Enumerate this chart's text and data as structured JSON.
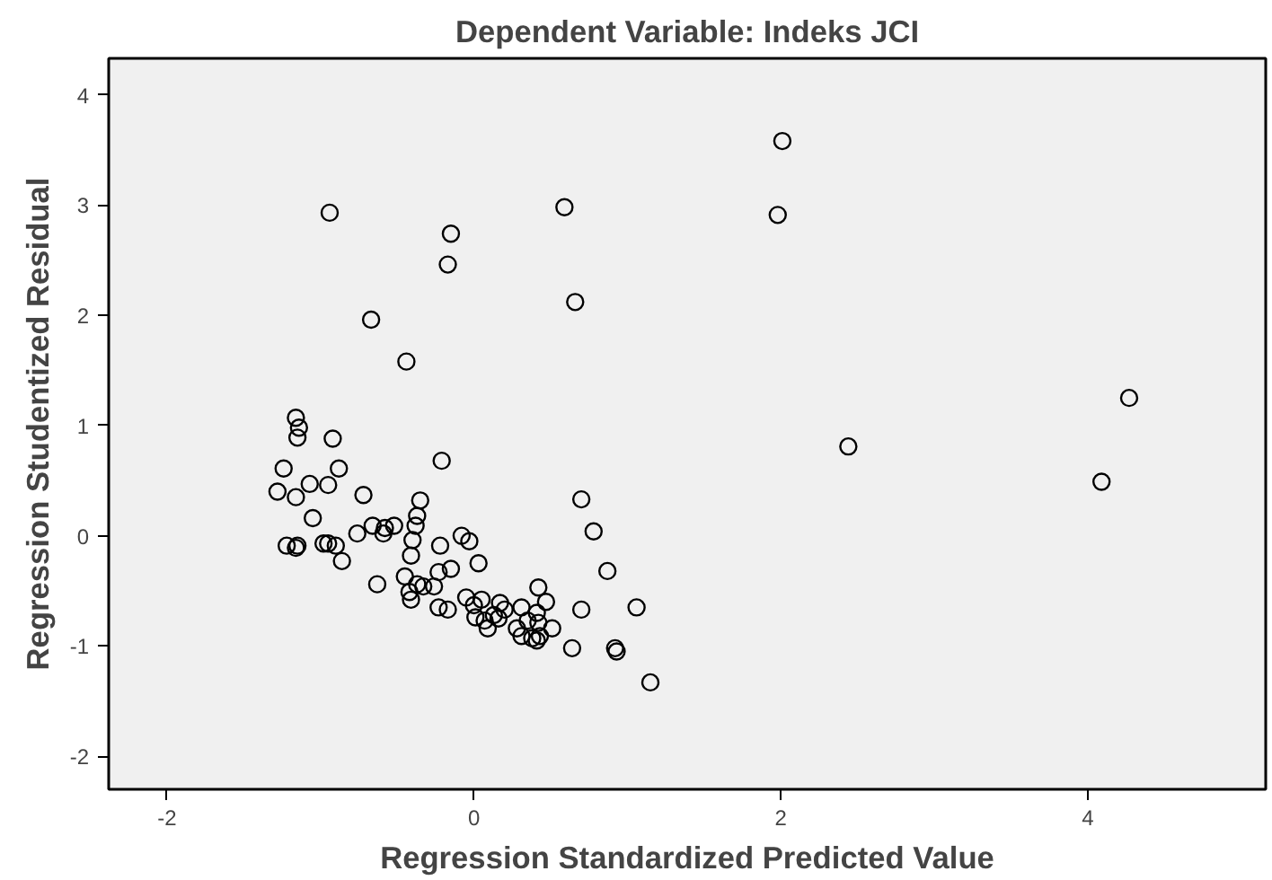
{
  "chart_data": {
    "type": "scatter",
    "title": "Dependent Variable: Indeks JCI",
    "xlabel": "Regression Standardized Predicted Value",
    "ylabel": "Regression Studentized Residual",
    "xlim": [
      -2.38,
      5.16
    ],
    "ylim": [
      -2.3,
      4.33
    ],
    "xticks": [
      -2,
      0,
      2,
      4
    ],
    "yticks": [
      -2,
      -1,
      0,
      1,
      2,
      3,
      4
    ],
    "marker": "circle",
    "series": [
      {
        "color": "#000000",
        "x": [
          -0.94,
          -0.15,
          -0.17,
          0.59,
          0.66,
          -0.67,
          -0.44,
          2.01,
          1.98,
          2.44,
          4.27,
          4.09,
          -1.16,
          -1.14,
          -1.15,
          -0.92,
          -0.88,
          -1.24,
          -1.16,
          -1.07,
          -1.28,
          -0.95,
          -1.05,
          -0.72,
          -0.66,
          -0.58,
          -0.59,
          -0.52,
          -0.76,
          -0.95,
          -1.22,
          -1.15,
          -1.16,
          -0.98,
          -0.9,
          -0.86,
          -0.63,
          -0.21,
          -0.35,
          -0.37,
          -0.38,
          -0.4,
          -0.41,
          -0.08,
          -0.03,
          0.03,
          -0.22,
          -0.23,
          -0.15,
          -0.45,
          -0.37,
          -0.42,
          -0.33,
          -0.26,
          -0.41,
          -0.23,
          -0.17,
          -0.05,
          0.0,
          0.05,
          0.01,
          0.07,
          0.13,
          0.17,
          0.2,
          0.16,
          0.09,
          0.28,
          0.31,
          0.35,
          0.42,
          0.41,
          0.38,
          0.43,
          0.31,
          0.42,
          0.47,
          0.51,
          0.41,
          0.7,
          0.78,
          0.87,
          0.7,
          0.64,
          0.92,
          0.93,
          1.15,
          1.06
        ],
        "values": [
          2.93,
          2.74,
          2.46,
          2.98,
          2.12,
          1.96,
          1.58,
          3.58,
          2.91,
          0.81,
          1.25,
          0.49,
          1.07,
          0.98,
          0.89,
          0.88,
          0.61,
          0.61,
          0.35,
          0.47,
          0.4,
          0.46,
          0.16,
          0.37,
          0.09,
          0.07,
          0.02,
          0.09,
          0.02,
          -0.07,
          -0.09,
          -0.09,
          -0.11,
          -0.07,
          -0.09,
          -0.23,
          -0.44,
          0.68,
          0.32,
          0.18,
          0.09,
          -0.04,
          -0.18,
          0.0,
          -0.05,
          -0.25,
          -0.09,
          -0.33,
          -0.3,
          -0.37,
          -0.44,
          -0.51,
          -0.46,
          -0.46,
          -0.58,
          -0.65,
          -0.67,
          -0.56,
          -0.63,
          -0.58,
          -0.74,
          -0.77,
          -0.72,
          -0.61,
          -0.67,
          -0.75,
          -0.84,
          -0.84,
          -0.91,
          -0.77,
          -0.79,
          -0.7,
          -0.93,
          -0.91,
          -0.65,
          -0.47,
          -0.6,
          -0.84,
          -0.95,
          0.33,
          0.04,
          -0.32,
          -0.67,
          -1.02,
          -1.02,
          -1.05,
          -1.33,
          -0.65
        ]
      }
    ]
  }
}
